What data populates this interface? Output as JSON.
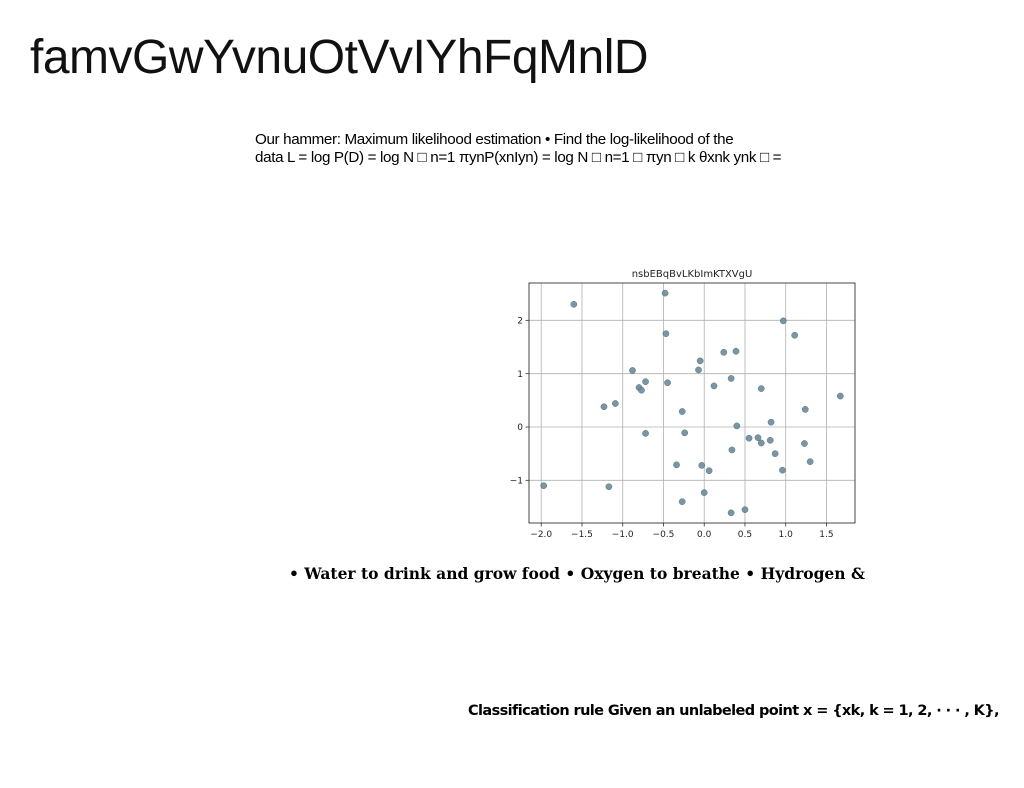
{
  "page": {
    "title": "famvGwYvnuOtVvIYhFqMnlD",
    "paragraph": {
      "line1": "Our hammer: Maximum likelihood estimation • Find the log-likelihood of the",
      "line2": "data L = log P(D) = log N □ n=1 πynP(xnIyn) = log N □ n=1 □ πyn □ k θxnk ynk □ ="
    },
    "bullets": "• Water to drink and grow food • Oxygen to breathe • Hydrogen &",
    "classification_rule": "Classification rule Given an unlabeled point x = {xk, k = 1, 2, · · · , K},"
  },
  "chart_data": {
    "type": "scatter",
    "title": "nsbEBqBvLKbImKTXVgU",
    "xlabel": "",
    "ylabel": "",
    "xlim": [
      -2.15,
      1.85
    ],
    "ylim": [
      -1.8,
      2.7
    ],
    "xticks": [
      -2.0,
      -1.5,
      -1.0,
      -0.5,
      0.0,
      0.5,
      1.0,
      1.5
    ],
    "xtick_labels": [
      "−2.0",
      "−1.5",
      "−1.0",
      "−0.5",
      "0.0",
      "0.5",
      "1.0",
      "1.5"
    ],
    "yticks": [
      -1,
      0,
      1,
      2
    ],
    "ytick_labels": [
      "−1",
      "0",
      "1",
      "2"
    ],
    "grid": true,
    "marker_color": "#6b8a99",
    "points": [
      {
        "x": -1.97,
        "y": -1.1
      },
      {
        "x": -1.6,
        "y": 2.3
      },
      {
        "x": -1.17,
        "y": -1.12
      },
      {
        "x": -1.23,
        "y": 0.38
      },
      {
        "x": -1.09,
        "y": 0.44
      },
      {
        "x": -0.88,
        "y": 1.06
      },
      {
        "x": -0.8,
        "y": 0.74
      },
      {
        "x": -0.77,
        "y": 0.69
      },
      {
        "x": -0.72,
        "y": 0.85
      },
      {
        "x": -0.72,
        "y": -0.12
      },
      {
        "x": -0.48,
        "y": 2.51
      },
      {
        "x": -0.47,
        "y": 1.75
      },
      {
        "x": -0.45,
        "y": 0.83
      },
      {
        "x": -0.34,
        "y": -0.71
      },
      {
        "x": -0.27,
        "y": 0.29
      },
      {
        "x": -0.27,
        "y": -1.4
      },
      {
        "x": -0.24,
        "y": -0.11
      },
      {
        "x": -0.07,
        "y": 1.07
      },
      {
        "x": -0.05,
        "y": 1.24
      },
      {
        "x": -0.03,
        "y": -0.72
      },
      {
        "x": 0.0,
        "y": -1.23
      },
      {
        "x": 0.06,
        "y": -0.82
      },
      {
        "x": 0.12,
        "y": 0.77
      },
      {
        "x": 0.24,
        "y": 1.4
      },
      {
        "x": 0.33,
        "y": 0.91
      },
      {
        "x": 0.34,
        "y": -0.43
      },
      {
        "x": 0.33,
        "y": -1.61
      },
      {
        "x": 0.39,
        "y": 1.42
      },
      {
        "x": 0.4,
        "y": 0.02
      },
      {
        "x": 0.5,
        "y": -1.55
      },
      {
        "x": 0.55,
        "y": -0.21
      },
      {
        "x": 0.66,
        "y": -0.2
      },
      {
        "x": 0.7,
        "y": -0.3
      },
      {
        "x": 0.7,
        "y": 0.72
      },
      {
        "x": 0.81,
        "y": -0.25
      },
      {
        "x": 0.82,
        "y": 0.09
      },
      {
        "x": 0.87,
        "y": -0.5
      },
      {
        "x": 0.96,
        "y": -0.81
      },
      {
        "x": 0.97,
        "y": 1.99
      },
      {
        "x": 1.11,
        "y": 1.72
      },
      {
        "x": 1.23,
        "y": -0.31
      },
      {
        "x": 1.24,
        "y": 0.33
      },
      {
        "x": 1.3,
        "y": -0.65
      },
      {
        "x": 1.67,
        "y": 0.58
      }
    ]
  }
}
